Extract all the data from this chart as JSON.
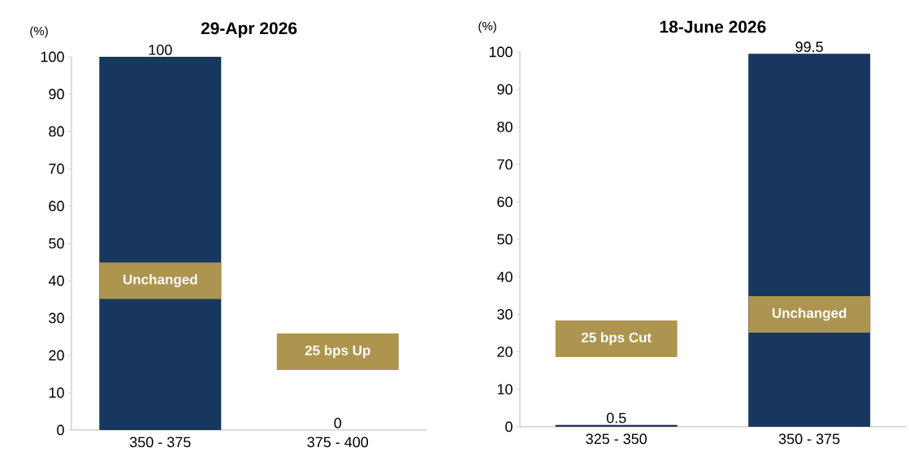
{
  "chart_data": [
    {
      "type": "bar",
      "title": "29-Apr 2026",
      "ylabel": "(%)",
      "categories": [
        "350 - 375",
        "375 - 400"
      ],
      "values": [
        100,
        0
      ],
      "color": "#17375e",
      "ylim": [
        0,
        100
      ],
      "yticks": [
        0,
        10,
        20,
        30,
        40,
        50,
        60,
        70,
        80,
        90,
        100
      ],
      "data_labels": true,
      "annotations": [
        "Unchanged",
        "25 bps Up"
      ]
    },
    {
      "type": "bar",
      "title": "18-June 2026",
      "ylabel": "(%)",
      "categories": [
        "325 - 350",
        "350 - 375"
      ],
      "values": [
        0.5,
        99.5
      ],
      "color": "#17375e",
      "ylim": [
        0,
        100
      ],
      "yticks": [
        0,
        10,
        20,
        30,
        40,
        50,
        60,
        70,
        80,
        90,
        100
      ],
      "data_labels": true,
      "annotations": [
        "25 bps Cut",
        "Unchanged"
      ]
    }
  ]
}
